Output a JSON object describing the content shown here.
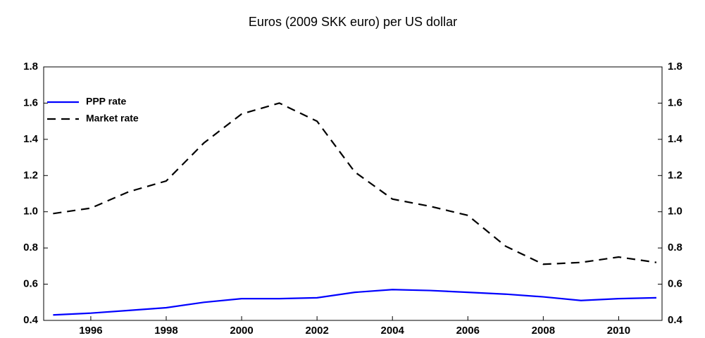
{
  "chart_data": {
    "type": "line",
    "title": "Euros (2009 SKK euro) per US dollar",
    "x": [
      1995,
      1996,
      1997,
      1998,
      1999,
      2000,
      2001,
      2002,
      2003,
      2004,
      2005,
      2006,
      2007,
      2008,
      2009,
      2010,
      2011
    ],
    "series": [
      {
        "name": "PPP rate",
        "color": "#0000ff",
        "line_style": "solid",
        "values": [
          0.43,
          0.44,
          0.455,
          0.47,
          0.5,
          0.52,
          0.52,
          0.525,
          0.555,
          0.57,
          0.565,
          0.555,
          0.545,
          0.53,
          0.51,
          0.52,
          0.525
        ]
      },
      {
        "name": "Market rate",
        "color": "#000000",
        "line_style": "dashed",
        "values": [
          0.99,
          1.02,
          1.11,
          1.17,
          1.38,
          1.54,
          1.6,
          1.5,
          1.22,
          1.07,
          1.03,
          0.98,
          0.81,
          0.71,
          0.72,
          0.75,
          0.72
        ]
      }
    ],
    "xlim": [
      1994.75,
      2011.15
    ],
    "xticks": [
      1996,
      1998,
      2000,
      2002,
      2004,
      2006,
      2008,
      2010
    ],
    "ylim": [
      0.4,
      1.8
    ],
    "yticks": [
      0.4,
      0.6,
      0.8,
      {
        "value": 1,
        "label": "1.0"
      },
      1.2,
      1.4,
      1.6,
      1.8
    ],
    "legend": "upper-left"
  }
}
